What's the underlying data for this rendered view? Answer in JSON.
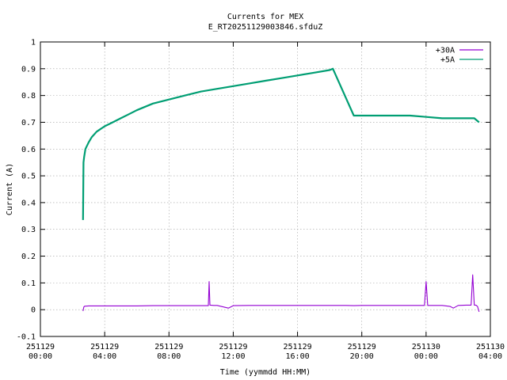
{
  "chart_data": {
    "type": "line",
    "title": "Currents for MEX",
    "subtitle": "E_RT20251129003846.sfduZ",
    "xlabel": "Time (yymmdd HH:MM)",
    "ylabel": "Current (A)",
    "xlim_hours": [
      0,
      28
    ],
    "ylim": [
      -0.1,
      1
    ],
    "yticks": [
      "-0.1",
      "0",
      "0.1",
      "0.2",
      "0.3",
      "0.4",
      "0.5",
      "0.6",
      "0.7",
      "0.8",
      "0.9",
      "1"
    ],
    "xticks": [
      {
        "date": "251129",
        "time": "00:00"
      },
      {
        "date": "251129",
        "time": "04:00"
      },
      {
        "date": "251129",
        "time": "08:00"
      },
      {
        "date": "251129",
        "time": "12:00"
      },
      {
        "date": "251129",
        "time": "16:00"
      },
      {
        "date": "251129",
        "time": "20:00"
      },
      {
        "date": "251130",
        "time": "00:00"
      },
      {
        "date": "251130",
        "time": "04:00"
      }
    ],
    "grid": true,
    "legend_position": "top-right",
    "series": [
      {
        "name": "+30A",
        "color": "#9400d3",
        "x_hours": [
          2.65,
          2.7,
          2.75,
          3,
          4,
          5,
          6,
          7,
          8,
          9,
          10,
          10.45,
          10.5,
          10.55,
          10.8,
          11,
          11.7,
          12,
          13,
          14,
          15,
          16,
          17,
          18,
          19,
          19.5,
          20,
          21,
          22,
          23,
          23.9,
          24.0,
          24.1,
          24.5,
          25,
          25.5,
          25.7,
          26,
          26.5,
          26.8,
          26.9,
          27.0,
          27.1,
          27.2,
          27.3
        ],
        "y": [
          -0.005,
          0.01,
          0.013,
          0.014,
          0.014,
          0.014,
          0.014,
          0.015,
          0.015,
          0.015,
          0.015,
          0.015,
          0.105,
          0.017,
          0.016,
          0.016,
          0.006,
          0.015,
          0.016,
          0.016,
          0.016,
          0.016,
          0.016,
          0.016,
          0.016,
          0.015,
          0.016,
          0.016,
          0.016,
          0.016,
          0.016,
          0.105,
          0.016,
          0.016,
          0.016,
          0.012,
          0.006,
          0.016,
          0.017,
          0.017,
          0.13,
          0.017,
          0.017,
          0.012,
          -0.008
        ]
      },
      {
        "name": "+5A",
        "color": "#009e73",
        "x_hours": [
          2.65,
          2.68,
          2.72,
          2.8,
          3,
          3.2,
          3.5,
          4,
          4.5,
          5,
          5.5,
          6,
          7,
          8,
          9,
          10,
          11,
          12,
          13,
          14,
          15,
          16,
          17,
          18,
          18.2,
          19.5,
          20,
          21,
          22,
          23,
          24,
          25,
          26,
          27,
          27.3
        ],
        "y": [
          0.335,
          0.55,
          0.57,
          0.6,
          0.625,
          0.645,
          0.665,
          0.685,
          0.7,
          0.715,
          0.73,
          0.745,
          0.77,
          0.785,
          0.8,
          0.815,
          0.825,
          0.835,
          0.845,
          0.855,
          0.865,
          0.875,
          0.885,
          0.895,
          0.9,
          0.725,
          0.725,
          0.725,
          0.725,
          0.725,
          0.72,
          0.715,
          0.715,
          0.715,
          0.7
        ]
      }
    ]
  }
}
